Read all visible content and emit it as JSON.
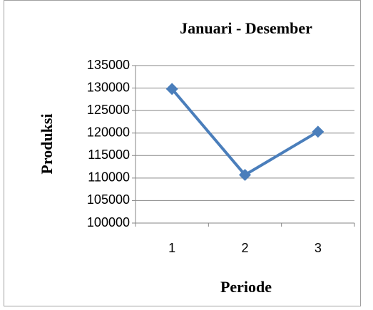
{
  "chart_data": {
    "type": "line",
    "title": "Januari - Desember",
    "x_label": "Periode",
    "y_label": "Produksi",
    "categories": [
      "1",
      "2",
      "3"
    ],
    "series": [
      {
        "name": "Produksi",
        "color": "#4a7ebb",
        "values": [
          129800,
          110700,
          120300
        ]
      }
    ],
    "ylim": [
      100000,
      135000
    ],
    "yticks": [
      100000,
      105000,
      110000,
      115000,
      120000,
      125000,
      130000,
      135000
    ],
    "grid": true
  }
}
